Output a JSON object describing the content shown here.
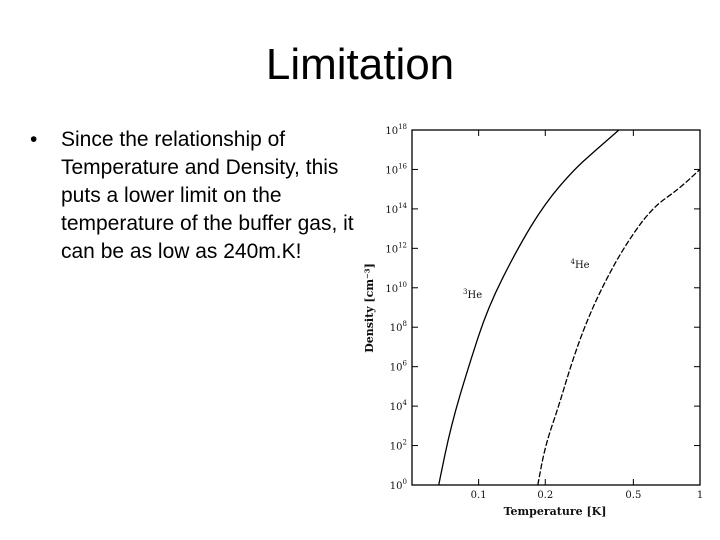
{
  "slide": {
    "title": "Limitation",
    "bullets": [
      {
        "glyph": "•",
        "text": "Since the relationship of Temperature and Density, this puts a lower limit on the temperature of the buffer gas, it can be as low as 240m.K!"
      }
    ]
  },
  "chart_data": {
    "type": "line",
    "xlabel": "Temperature [K]",
    "ylabel": "Density [cm⁻³]",
    "xscale": "log",
    "yscale": "log",
    "xlim": [
      0.05,
      1.0
    ],
    "ylim": [
      1,
      1e+18
    ],
    "x_ticks": [
      {
        "value": 0.1,
        "label": "0.1"
      },
      {
        "value": 0.2,
        "label": "0.2"
      },
      {
        "value": 0.5,
        "label": "0.5"
      },
      {
        "value": 1.0,
        "label": "1"
      }
    ],
    "y_ticks": [
      {
        "value": 1,
        "base": "10",
        "exp": "0"
      },
      {
        "value": 100.0,
        "base": "10",
        "exp": "2"
      },
      {
        "value": 10000.0,
        "base": "10",
        "exp": "4"
      },
      {
        "value": 1000000.0,
        "base": "10",
        "exp": "6"
      },
      {
        "value": 100000000.0,
        "base": "10",
        "exp": "8"
      },
      {
        "value": 10000000000.0,
        "base": "10",
        "exp": "10"
      },
      {
        "value": 1000000000000.0,
        "base": "10",
        "exp": "12"
      },
      {
        "value": 100000000000000.0,
        "base": "10",
        "exp": "14"
      },
      {
        "value": 1e+16,
        "base": "10",
        "exp": "16"
      },
      {
        "value": 1e+18,
        "base": "10",
        "exp": "18"
      }
    ],
    "series": [
      {
        "name": "³He",
        "label_sup": "3",
        "label_main": "He",
        "label_at": {
          "x": 0.085,
          "y": 3000000000.0
        },
        "style": "solid",
        "points": [
          {
            "x": 0.066,
            "y": 1
          },
          {
            "x": 0.075,
            "y": 1000.0
          },
          {
            "x": 0.09,
            "y": 1000000.0
          },
          {
            "x": 0.11,
            "y": 1000000000.0
          },
          {
            "x": 0.15,
            "y": 1000000000000.0
          },
          {
            "x": 0.2,
            "y": 200000000000000.0
          },
          {
            "x": 0.27,
            "y": 1e+16
          },
          {
            "x": 0.34,
            "y": 1e+17
          },
          {
            "x": 0.43,
            "y": 1e+18
          }
        ]
      },
      {
        "name": "⁴He",
        "label_sup": "4",
        "label_main": "He",
        "label_at": {
          "x": 0.26,
          "y": 100000000000.0
        },
        "style": "dashed",
        "points": [
          {
            "x": 0.185,
            "y": 1
          },
          {
            "x": 0.2,
            "y": 100.0
          },
          {
            "x": 0.23,
            "y": 10000.0
          },
          {
            "x": 0.26,
            "y": 1000000.0
          },
          {
            "x": 0.3,
            "y": 100000000.0
          },
          {
            "x": 0.36,
            "y": 10000000000.0
          },
          {
            "x": 0.45,
            "y": 1000000000000.0
          },
          {
            "x": 0.6,
            "y": 100000000000000.0
          },
          {
            "x": 0.8,
            "y": 1000000000000000.0
          },
          {
            "x": 1.0,
            "y": 1e+16
          }
        ]
      }
    ]
  }
}
